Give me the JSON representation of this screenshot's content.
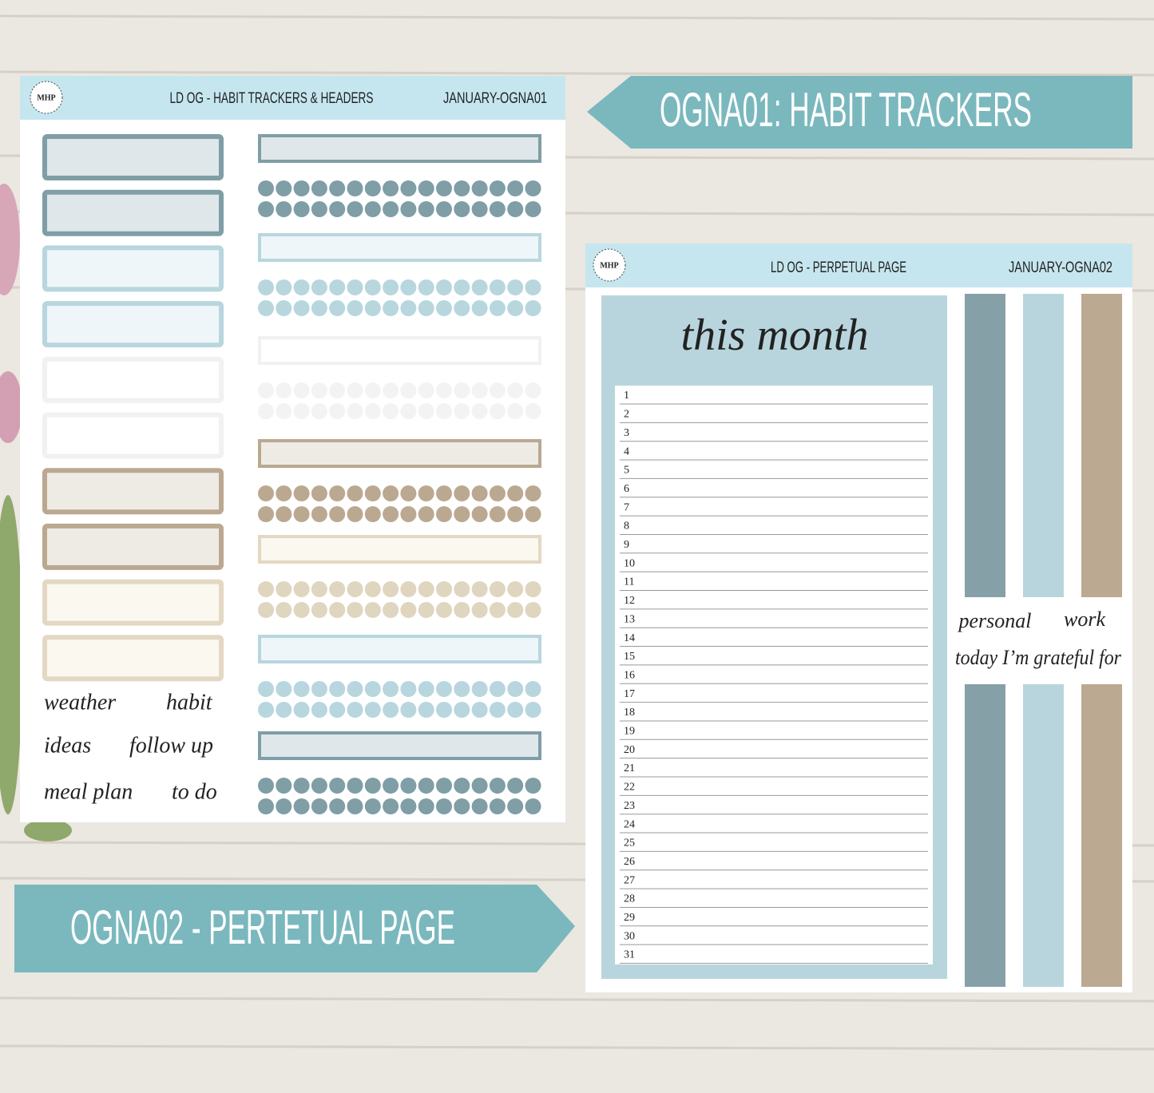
{
  "banners": {
    "top": "OGNA01: HABIT TRACKERS",
    "bottom": "OGNA02 - PERTETUAL PAGE"
  },
  "sheet_1": {
    "logo": "MHP",
    "title": "LD OG - HABIT TRACKERS & HEADERS",
    "code": "JANUARY-OGNA01",
    "labels": [
      "weather",
      "habit",
      "ideas",
      "follow up",
      "meal plan",
      "to do"
    ]
  },
  "sheet_2": {
    "logo": "MHP",
    "title": "LD OG - PERPETUAL PAGE",
    "code": "JANUARY-OGNA02",
    "heading": "this month",
    "days": [
      1,
      2,
      3,
      4,
      5,
      6,
      7,
      8,
      9,
      10,
      11,
      12,
      13,
      14,
      15,
      16,
      17,
      18,
      19,
      20,
      21,
      22,
      23,
      24,
      25,
      26,
      27,
      28,
      29,
      30,
      31
    ],
    "labels": [
      "personal",
      "work",
      "today I’m grateful for"
    ]
  }
}
